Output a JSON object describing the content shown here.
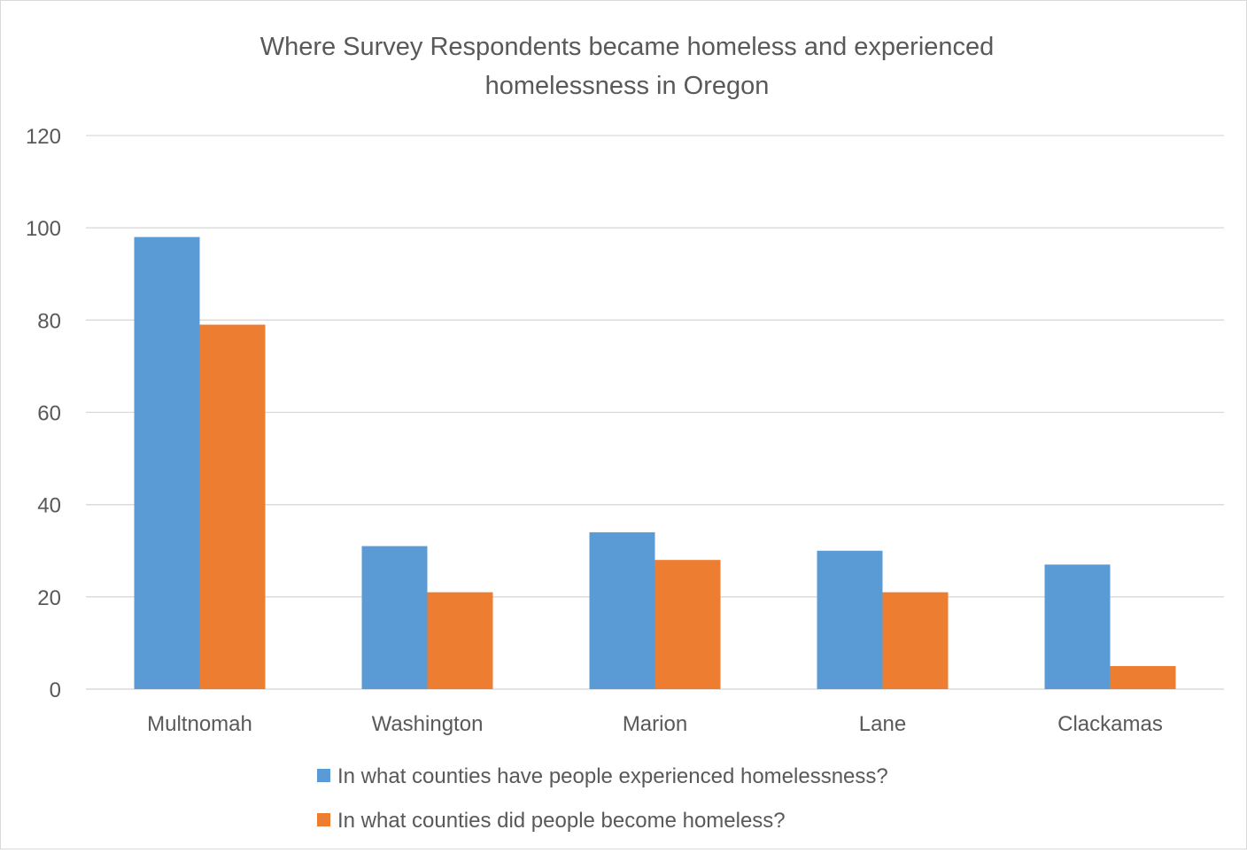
{
  "chart_data": {
    "type": "bar",
    "title_lines": [
      "Where Survey Respondents became homeless and experienced",
      "homelessness in Oregon"
    ],
    "categories": [
      "Multnomah",
      "Washington",
      "Marion",
      "Lane",
      "Clackamas"
    ],
    "series": [
      {
        "name": "In what counties have people experienced homelessness?",
        "color": "#5b9bd5",
        "values": [
          98,
          31,
          34,
          30,
          27
        ]
      },
      {
        "name": "In what counties did people become homeless?",
        "color": "#ed7d31",
        "values": [
          79,
          21,
          28,
          21,
          5
        ]
      }
    ],
    "ylim": [
      0,
      120
    ],
    "yticks": [
      0,
      20,
      40,
      60,
      80,
      100,
      120
    ],
    "grid": true,
    "legend_position": "bottom"
  }
}
